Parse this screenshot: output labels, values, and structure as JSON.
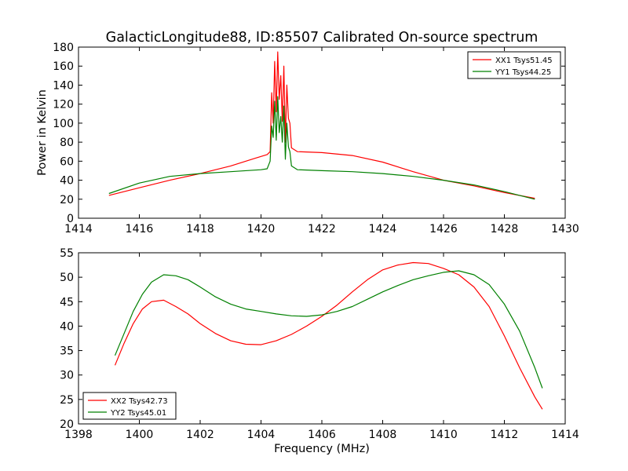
{
  "figure": {
    "title": "GalacticLongitude88, ID:85507 Calibrated On-source spectrum",
    "xlabel": "Frequency (MHz)"
  },
  "chart_data": [
    {
      "type": "line",
      "ylabel": "Power in Kelvin",
      "xlabel": "",
      "xlim": [
        1414,
        1430
      ],
      "ylim": [
        0,
        180
      ],
      "xticks": [
        "1414",
        "1416",
        "1418",
        "1420",
        "1422",
        "1424",
        "1426",
        "1428",
        "1430"
      ],
      "yticks": [
        "0",
        "20",
        "40",
        "60",
        "80",
        "100",
        "120",
        "140",
        "160",
        "180"
      ],
      "grid": false,
      "legend_position": "top-right",
      "series": [
        {
          "name": "XX1 Tsys51.45",
          "color": "#ff0000",
          "x": [
            1415.0,
            1416.0,
            1417.0,
            1418.0,
            1419.0,
            1419.8,
            1420.2,
            1420.3,
            1420.35,
            1420.4,
            1420.45,
            1420.5,
            1420.55,
            1420.6,
            1420.65,
            1420.7,
            1420.75,
            1420.8,
            1420.85,
            1420.9,
            1420.95,
            1421.0,
            1421.2,
            1422.0,
            1423.0,
            1424.0,
            1425.0,
            1426.0,
            1427.0,
            1428.0,
            1429.0
          ],
          "y": [
            24,
            32,
            40,
            47,
            55,
            63,
            67,
            70,
            132,
            100,
            165,
            112,
            175,
            125,
            150,
            102,
            160,
            80,
            140,
            105,
            100,
            74,
            70,
            69,
            66,
            59,
            49,
            40,
            34,
            27,
            21
          ]
        },
        {
          "name": "YY1 Tsys44.25",
          "color": "#008000",
          "x": [
            1415.0,
            1416.0,
            1417.0,
            1418.0,
            1419.0,
            1420.0,
            1420.2,
            1420.3,
            1420.35,
            1420.4,
            1420.45,
            1420.5,
            1420.55,
            1420.6,
            1420.65,
            1420.7,
            1420.75,
            1420.8,
            1420.85,
            1420.9,
            1420.95,
            1421.0,
            1421.2,
            1422.0,
            1423.0,
            1424.0,
            1425.0,
            1426.0,
            1427.0,
            1428.0,
            1429.0
          ],
          "y": [
            26,
            37,
            44,
            47,
            49,
            51,
            52,
            60,
            97,
            85,
            123,
            82,
            128,
            90,
            107,
            80,
            118,
            62,
            100,
            75,
            70,
            55,
            51,
            50,
            49,
            47,
            44,
            40,
            35,
            28,
            20
          ]
        }
      ]
    },
    {
      "type": "line",
      "ylabel": "",
      "xlabel": "Frequency (MHz)",
      "xlim": [
        1398,
        1414
      ],
      "ylim": [
        20,
        55
      ],
      "xticks": [
        "1398",
        "1400",
        "1402",
        "1404",
        "1406",
        "1408",
        "1410",
        "1412",
        "1414"
      ],
      "yticks": [
        "20",
        "25",
        "30",
        "35",
        "40",
        "45",
        "50",
        "55"
      ],
      "grid": false,
      "legend_position": "bottom-left",
      "series": [
        {
          "name": "XX2 Tsys42.73",
          "color": "#ff0000",
          "x": [
            1399.2,
            1399.5,
            1399.8,
            1400.1,
            1400.4,
            1400.8,
            1401.2,
            1401.6,
            1402.0,
            1402.5,
            1403.0,
            1403.5,
            1404.0,
            1404.5,
            1405.0,
            1405.5,
            1406.0,
            1406.5,
            1407.0,
            1407.5,
            1408.0,
            1408.5,
            1409.0,
            1409.5,
            1410.0,
            1410.5,
            1411.0,
            1411.5,
            1412.0,
            1412.5,
            1413.0,
            1413.25
          ],
          "y": [
            32.0,
            36.5,
            40.5,
            43.5,
            45.0,
            45.3,
            44.0,
            42.5,
            40.5,
            38.5,
            37.0,
            36.3,
            36.2,
            37.0,
            38.3,
            40.0,
            42.0,
            44.3,
            47.0,
            49.5,
            51.5,
            52.5,
            53.0,
            52.8,
            51.8,
            50.5,
            48.0,
            44.0,
            38.0,
            31.5,
            25.5,
            23.0
          ]
        },
        {
          "name": "YY2 Tsys45.01",
          "color": "#008000",
          "x": [
            1399.2,
            1399.5,
            1399.8,
            1400.1,
            1400.4,
            1400.8,
            1401.2,
            1401.6,
            1402.0,
            1402.5,
            1403.0,
            1403.5,
            1404.0,
            1404.5,
            1405.0,
            1405.5,
            1406.0,
            1406.5,
            1407.0,
            1407.5,
            1408.0,
            1408.5,
            1409.0,
            1409.5,
            1410.0,
            1410.5,
            1411.0,
            1411.5,
            1412.0,
            1412.5,
            1413.0,
            1413.25
          ],
          "y": [
            34.0,
            38.5,
            43.0,
            46.5,
            49.0,
            50.5,
            50.3,
            49.5,
            48.0,
            46.0,
            44.5,
            43.5,
            43.0,
            42.5,
            42.1,
            42.0,
            42.3,
            43.0,
            44.0,
            45.5,
            47.0,
            48.3,
            49.5,
            50.3,
            51.0,
            51.3,
            50.5,
            48.5,
            44.5,
            39.0,
            31.5,
            27.3
          ]
        }
      ]
    }
  ]
}
